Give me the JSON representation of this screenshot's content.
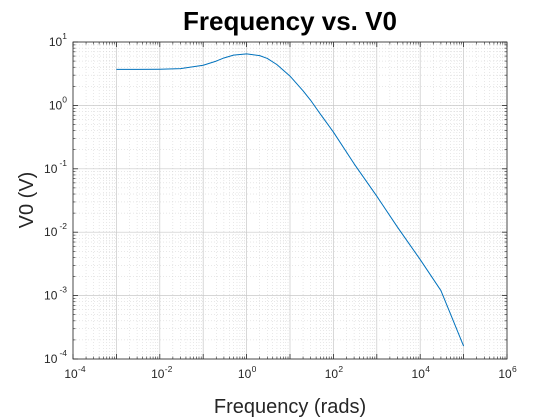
{
  "chart_data": {
    "type": "line",
    "title": "Frequency vs. V0",
    "xlabel": "Frequency (rads)",
    "ylabel": "V0 (V)",
    "xscale": "log",
    "yscale": "log",
    "xlim": [
      0.0001,
      1000000
    ],
    "ylim": [
      0.0001,
      10
    ],
    "grid": "major-and-minor",
    "legend": "none",
    "x_ticks": [
      {
        "base": "10",
        "exp": "-4",
        "value": 0.0001
      },
      {
        "base": "10",
        "exp": "-2",
        "value": 0.01
      },
      {
        "base": "10",
        "exp": "0",
        "value": 1
      },
      {
        "base": "10",
        "exp": "2",
        "value": 100
      },
      {
        "base": "10",
        "exp": "4",
        "value": 10000
      },
      {
        "base": "10",
        "exp": "6",
        "value": 1000000
      }
    ],
    "y_ticks": [
      {
        "base": "10",
        "exp": "-4",
        "value": 0.0001
      },
      {
        "base": "10",
        "exp": "-3",
        "value": 0.001
      },
      {
        "base": "10",
        "exp": "-2",
        "value": 0.01
      },
      {
        "base": "10",
        "exp": "-1",
        "value": 0.1
      },
      {
        "base": "10",
        "exp": "0",
        "value": 1
      },
      {
        "base": "10",
        "exp": "1",
        "value": 10
      }
    ],
    "series": [
      {
        "color": "#0072BD",
        "x": [
          0.001,
          0.003,
          0.01,
          0.03,
          0.1,
          0.2,
          0.3,
          0.5,
          1,
          2,
          3,
          5,
          10,
          20,
          30,
          50,
          100,
          300,
          1000,
          3000,
          10000,
          30000,
          100000
        ],
        "y": [
          3.7,
          3.7,
          3.72,
          3.8,
          4.3,
          5.0,
          5.6,
          6.2,
          6.5,
          6.1,
          5.5,
          4.4,
          2.9,
          1.7,
          1.2,
          0.73,
          0.38,
          0.12,
          0.037,
          0.012,
          0.0037,
          0.0012,
          0.00016
        ]
      }
    ]
  }
}
